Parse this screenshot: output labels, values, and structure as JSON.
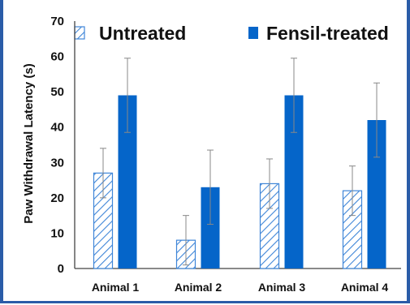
{
  "chart_data": {
    "type": "bar",
    "title": "",
    "xlabel": "",
    "ylabel": "Paw Withdrawal Latency (s)",
    "ylim": [
      0,
      70
    ],
    "yticks": [
      0,
      10,
      20,
      30,
      40,
      50,
      60,
      70
    ],
    "grid": false,
    "legend_position": "top",
    "categories": [
      "Animal 1",
      "Animal 2",
      "Animal 3",
      "Animal 4"
    ],
    "series": [
      {
        "name": "Untreated",
        "pattern": "hatched",
        "color": "#3f86d8",
        "values": [
          27,
          8,
          24,
          22
        ],
        "errors": [
          7,
          7,
          7,
          7
        ]
      },
      {
        "name": "Fensil-treated",
        "pattern": "solid",
        "color": "#0565c9",
        "values": [
          49,
          23,
          49,
          42
        ],
        "errors": [
          10.5,
          10.5,
          10.5,
          10.5
        ]
      }
    ]
  }
}
